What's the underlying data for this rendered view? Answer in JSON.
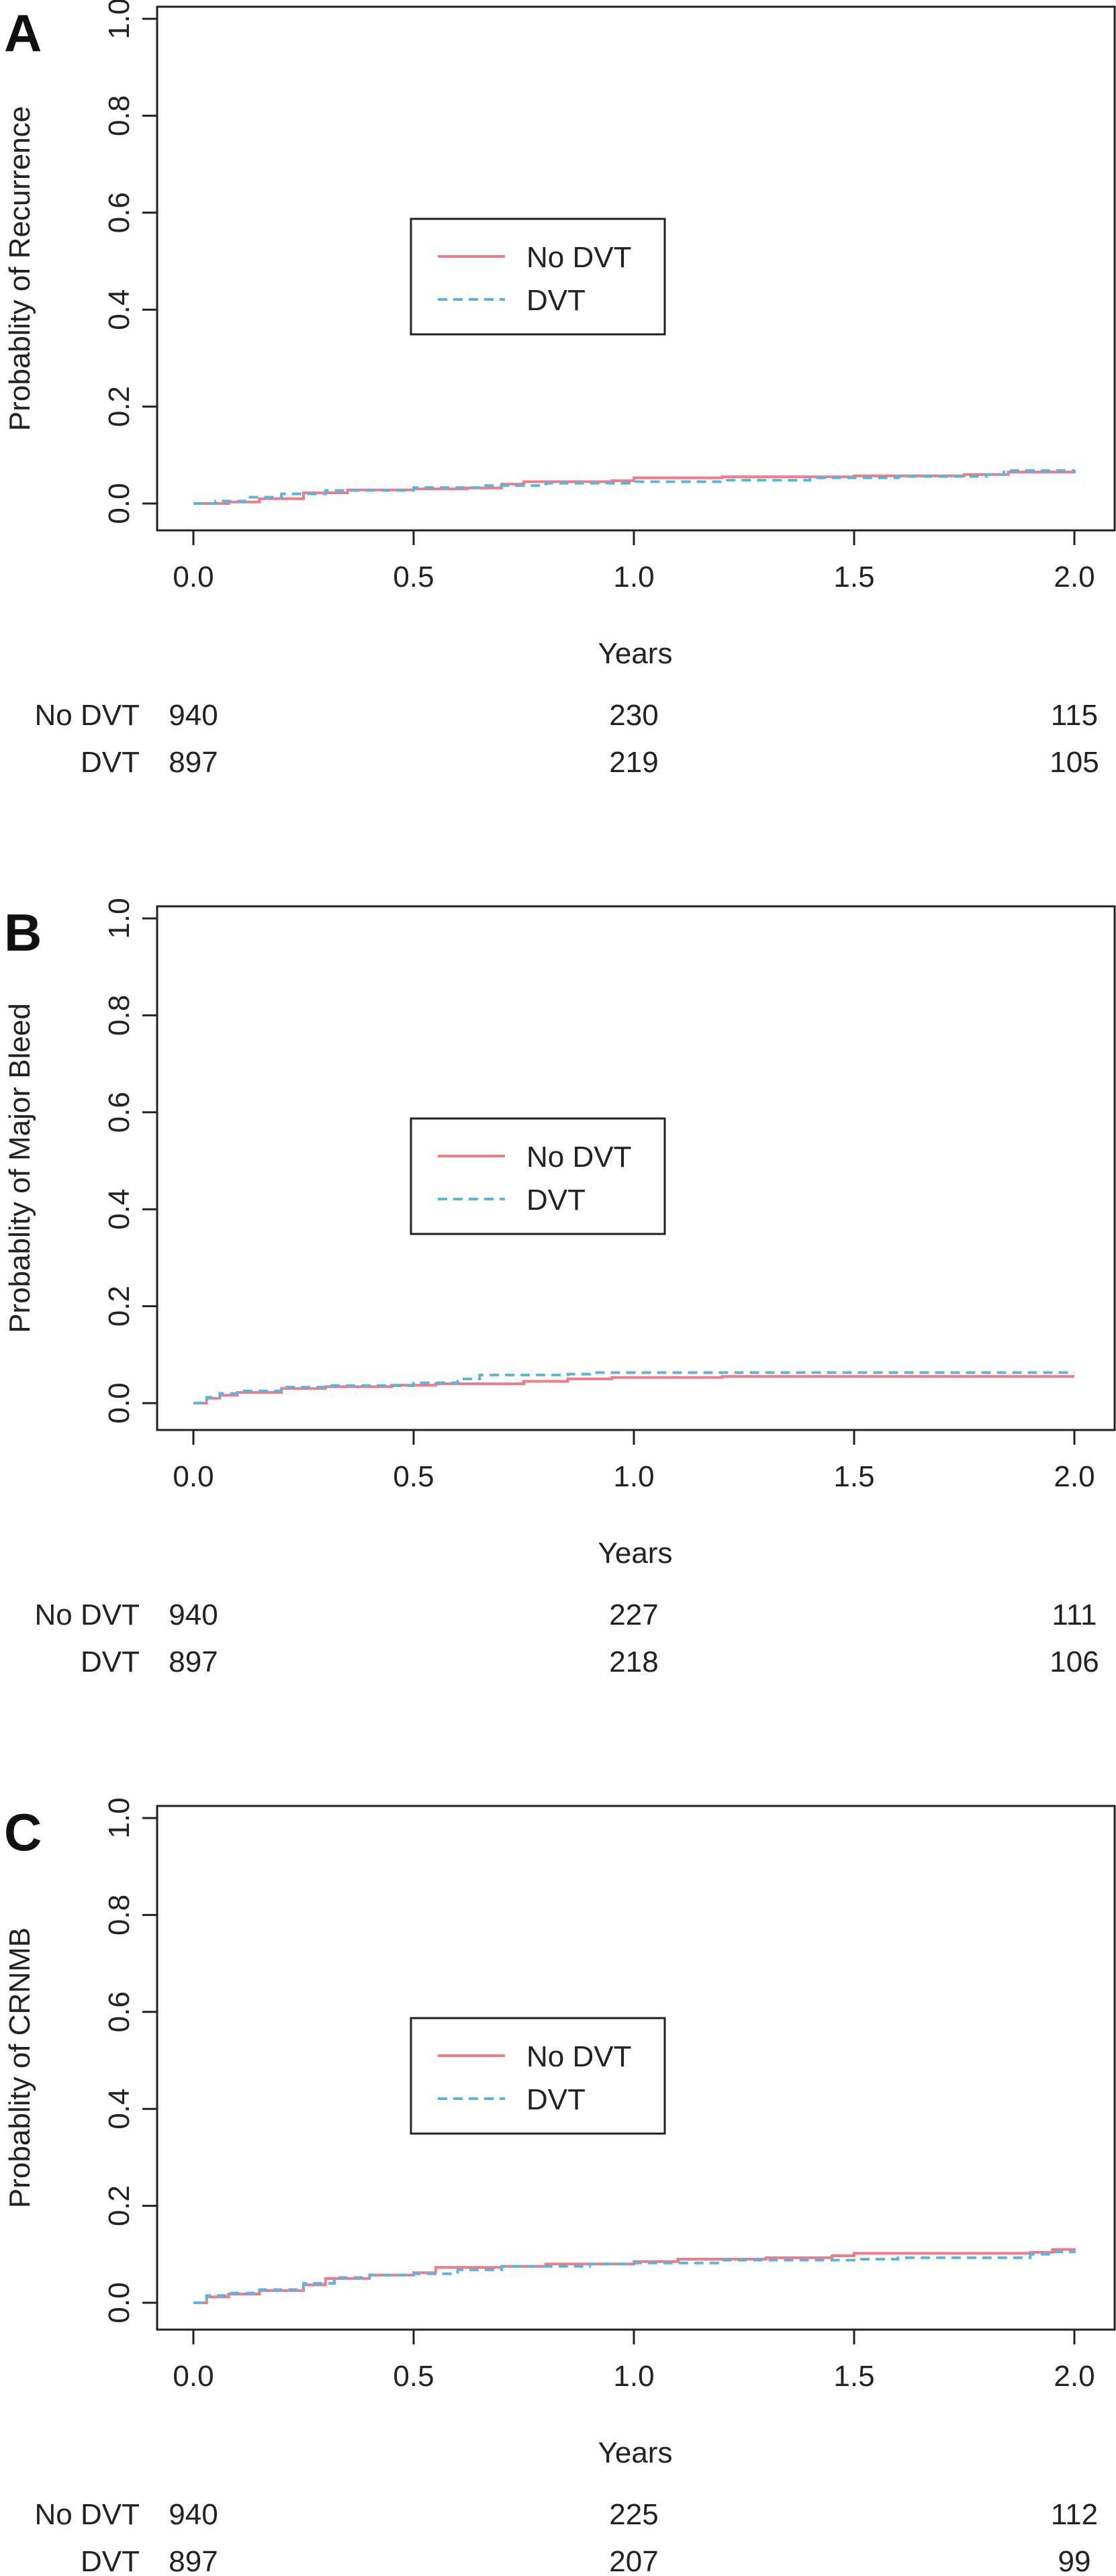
{
  "colors": {
    "no_dvt": "#f07a86",
    "dvt": "#5ab4e0"
  },
  "legend_labels": [
    "No DVT",
    "DVT"
  ],
  "risk_table_labels": [
    "No DVT",
    "DVT"
  ],
  "chart_data": [
    {
      "type": "line",
      "panel_label": "A",
      "ylabel": "Probablity of Recurrence",
      "xlabel": "Years",
      "xlim": [
        0,
        2
      ],
      "ylim": [
        0,
        1
      ],
      "x_ticks": [
        "0.0",
        "0.5",
        "1.0",
        "1.5",
        "2.0"
      ],
      "y_ticks": [
        "0.0",
        "0.2",
        "0.4",
        "0.6",
        "0.8",
        "1.0"
      ],
      "legend_position": "center-left",
      "series": [
        {
          "name": "No DVT",
          "style": "solid",
          "points": [
            [
              0,
              0
            ],
            [
              0.08,
              0.003
            ],
            [
              0.15,
              0.01
            ],
            [
              0.25,
              0.022
            ],
            [
              0.35,
              0.028
            ],
            [
              0.5,
              0.03
            ],
            [
              0.62,
              0.032
            ],
            [
              0.7,
              0.04
            ],
            [
              0.75,
              0.045
            ],
            [
              0.95,
              0.047
            ],
            [
              1.0,
              0.053
            ],
            [
              1.2,
              0.055
            ],
            [
              1.5,
              0.057
            ],
            [
              1.75,
              0.06
            ],
            [
              1.85,
              0.065
            ],
            [
              2.0,
              0.068
            ]
          ]
        },
        {
          "name": "DVT",
          "style": "dashed",
          "points": [
            [
              0,
              0
            ],
            [
              0.05,
              0.005
            ],
            [
              0.12,
              0.013
            ],
            [
              0.2,
              0.02
            ],
            [
              0.3,
              0.027
            ],
            [
              0.5,
              0.033
            ],
            [
              0.65,
              0.037
            ],
            [
              0.8,
              0.042
            ],
            [
              1.0,
              0.045
            ],
            [
              1.2,
              0.048
            ],
            [
              1.4,
              0.053
            ],
            [
              1.6,
              0.056
            ],
            [
              1.8,
              0.06
            ],
            [
              1.84,
              0.068
            ],
            [
              2.0,
              0.07
            ]
          ]
        }
      ],
      "at_risk": {
        "times": [
          0,
          1,
          2
        ],
        "no_dvt": [
          "940",
          "230",
          "115"
        ],
        "dvt": [
          "897",
          "219",
          "105"
        ]
      }
    },
    {
      "type": "line",
      "panel_label": "B",
      "ylabel": "Probablity of Major Bleed",
      "xlabel": "Years",
      "xlim": [
        0,
        2
      ],
      "ylim": [
        0,
        1
      ],
      "x_ticks": [
        "0.0",
        "0.5",
        "1.0",
        "1.5",
        "2.0"
      ],
      "y_ticks": [
        "0.0",
        "0.2",
        "0.4",
        "0.6",
        "0.8",
        "1.0"
      ],
      "legend_position": "center-left",
      "series": [
        {
          "name": "No DVT",
          "style": "solid",
          "points": [
            [
              0,
              0
            ],
            [
              0.03,
              0.01
            ],
            [
              0.06,
              0.016
            ],
            [
              0.1,
              0.022
            ],
            [
              0.2,
              0.03
            ],
            [
              0.3,
              0.034
            ],
            [
              0.45,
              0.037
            ],
            [
              0.55,
              0.04
            ],
            [
              0.75,
              0.045
            ],
            [
              0.85,
              0.05
            ],
            [
              0.95,
              0.053
            ],
            [
              1.2,
              0.055
            ],
            [
              2.0,
              0.055
            ]
          ]
        },
        {
          "name": "DVT",
          "style": "dashed",
          "points": [
            [
              0,
              0
            ],
            [
              0.03,
              0.012
            ],
            [
              0.06,
              0.02
            ],
            [
              0.1,
              0.025
            ],
            [
              0.2,
              0.033
            ],
            [
              0.3,
              0.036
            ],
            [
              0.5,
              0.042
            ],
            [
              0.6,
              0.05
            ],
            [
              0.65,
              0.058
            ],
            [
              0.85,
              0.06
            ],
            [
              0.9,
              0.063
            ],
            [
              2.0,
              0.063
            ]
          ]
        }
      ],
      "at_risk": {
        "times": [
          0,
          1,
          2
        ],
        "no_dvt": [
          "940",
          "227",
          "111"
        ],
        "dvt": [
          "897",
          "218",
          "106"
        ]
      }
    },
    {
      "type": "line",
      "panel_label": "C",
      "ylabel": "Probablity of CRNMB",
      "xlabel": "Years",
      "xlim": [
        0,
        2
      ],
      "ylim": [
        0,
        1
      ],
      "x_ticks": [
        "0.0",
        "0.5",
        "1.0",
        "1.5",
        "2.0"
      ],
      "y_ticks": [
        "0.0",
        "0.2",
        "0.4",
        "0.6",
        "0.8",
        "1.0"
      ],
      "legend_position": "center-left",
      "series": [
        {
          "name": "No DVT",
          "style": "solid",
          "points": [
            [
              0,
              0
            ],
            [
              0.03,
              0.012
            ],
            [
              0.08,
              0.018
            ],
            [
              0.15,
              0.025
            ],
            [
              0.25,
              0.037
            ],
            [
              0.3,
              0.05
            ],
            [
              0.4,
              0.057
            ],
            [
              0.5,
              0.062
            ],
            [
              0.55,
              0.073
            ],
            [
              0.7,
              0.075
            ],
            [
              0.8,
              0.08
            ],
            [
              1.0,
              0.085
            ],
            [
              1.1,
              0.09
            ],
            [
              1.3,
              0.093
            ],
            [
              1.45,
              0.097
            ],
            [
              1.5,
              0.102
            ],
            [
              1.9,
              0.104
            ],
            [
              1.95,
              0.11
            ],
            [
              2.0,
              0.108
            ]
          ]
        },
        {
          "name": "DVT",
          "style": "dashed",
          "points": [
            [
              0,
              0
            ],
            [
              0.03,
              0.015
            ],
            [
              0.08,
              0.02
            ],
            [
              0.15,
              0.027
            ],
            [
              0.25,
              0.04
            ],
            [
              0.32,
              0.052
            ],
            [
              0.4,
              0.057
            ],
            [
              0.5,
              0.06
            ],
            [
              0.6,
              0.068
            ],
            [
              0.7,
              0.075
            ],
            [
              0.9,
              0.08
            ],
            [
              1.0,
              0.082
            ],
            [
              1.2,
              0.088
            ],
            [
              1.5,
              0.09
            ],
            [
              1.6,
              0.093
            ],
            [
              1.9,
              0.1
            ],
            [
              1.95,
              0.105
            ],
            [
              2.0,
              0.108
            ]
          ]
        }
      ],
      "at_risk": {
        "times": [
          0,
          1,
          2
        ],
        "no_dvt": [
          "940",
          "225",
          "112"
        ],
        "dvt": [
          "897",
          "207",
          "99"
        ]
      }
    }
  ]
}
